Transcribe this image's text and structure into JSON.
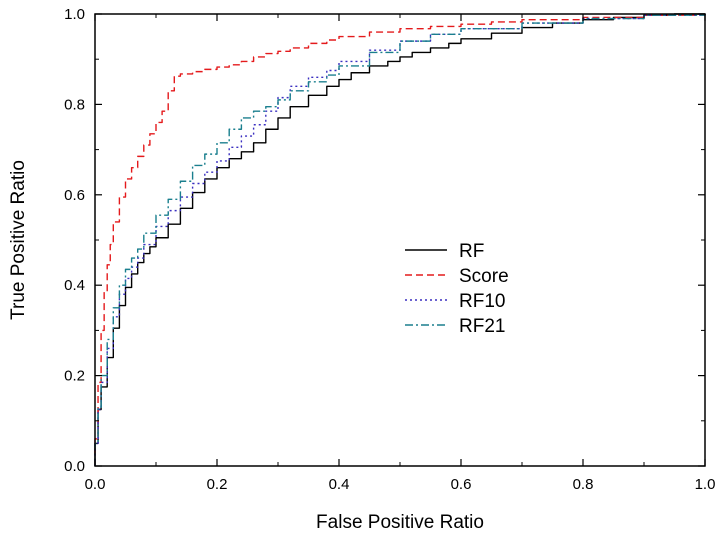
{
  "chart_data": {
    "type": "line",
    "title": "",
    "xlabel": "False Positive Ratio",
    "ylabel": "True Positive Ratio",
    "xlim": [
      0.0,
      1.0
    ],
    "ylim": [
      0.0,
      1.0
    ],
    "xticks": [
      "0.0",
      "0.2",
      "0.4",
      "0.6",
      "0.8",
      "1.0"
    ],
    "yticks": [
      "0.0",
      "0.2",
      "0.4",
      "0.6",
      "0.8",
      "1.0"
    ],
    "grid": false,
    "legend_position": "center-right",
    "series": [
      {
        "name": "RF",
        "color": "#000000",
        "dash": "solid",
        "x": [
          0.0,
          0.005,
          0.01,
          0.02,
          0.03,
          0.04,
          0.05,
          0.06,
          0.07,
          0.08,
          0.09,
          0.1,
          0.12,
          0.14,
          0.16,
          0.18,
          0.2,
          0.22,
          0.24,
          0.26,
          0.28,
          0.3,
          0.32,
          0.35,
          0.38,
          0.4,
          0.42,
          0.45,
          0.48,
          0.5,
          0.52,
          0.55,
          0.58,
          0.6,
          0.65,
          0.7,
          0.75,
          0.8,
          0.85,
          0.9,
          0.95,
          1.0
        ],
        "y": [
          0.0,
          0.1,
          0.15,
          0.2,
          0.28,
          0.33,
          0.38,
          0.41,
          0.44,
          0.46,
          0.48,
          0.49,
          0.52,
          0.55,
          0.59,
          0.62,
          0.65,
          0.67,
          0.69,
          0.7,
          0.73,
          0.76,
          0.78,
          0.81,
          0.83,
          0.85,
          0.86,
          0.88,
          0.89,
          0.9,
          0.91,
          0.92,
          0.93,
          0.94,
          0.95,
          0.965,
          0.975,
          0.985,
          0.99,
          0.995,
          1.0,
          1.0
        ]
      },
      {
        "name": "Score",
        "color": "#e41a1c",
        "dash": "dashed",
        "x": [
          0.0,
          0.005,
          0.01,
          0.015,
          0.02,
          0.025,
          0.03,
          0.04,
          0.05,
          0.06,
          0.07,
          0.08,
          0.09,
          0.1,
          0.11,
          0.12,
          0.13,
          0.14,
          0.16,
          0.18,
          0.2,
          0.22,
          0.24,
          0.26,
          0.28,
          0.3,
          0.32,
          0.35,
          0.38,
          0.4,
          0.45,
          0.5,
          0.55,
          0.6,
          0.65,
          0.7,
          0.8,
          0.9,
          1.0
        ],
        "y": [
          0.0,
          0.12,
          0.25,
          0.35,
          0.42,
          0.47,
          0.51,
          0.57,
          0.62,
          0.65,
          0.67,
          0.7,
          0.72,
          0.75,
          0.77,
          0.8,
          0.86,
          0.865,
          0.87,
          0.875,
          0.88,
          0.885,
          0.89,
          0.9,
          0.91,
          0.915,
          0.92,
          0.93,
          0.94,
          0.945,
          0.955,
          0.965,
          0.97,
          0.975,
          0.98,
          0.985,
          0.99,
          0.995,
          1.0
        ]
      },
      {
        "name": "RF10",
        "color": "#3a2fc0",
        "dash": "dotted",
        "x": [
          0.0,
          0.005,
          0.01,
          0.02,
          0.03,
          0.04,
          0.05,
          0.06,
          0.07,
          0.08,
          0.1,
          0.12,
          0.14,
          0.16,
          0.18,
          0.2,
          0.22,
          0.24,
          0.26,
          0.28,
          0.3,
          0.32,
          0.35,
          0.38,
          0.4,
          0.45,
          0.5,
          0.55,
          0.6,
          0.7,
          0.8,
          0.9,
          1.0
        ],
        "y": [
          0.0,
          0.1,
          0.15,
          0.22,
          0.3,
          0.36,
          0.4,
          0.43,
          0.45,
          0.47,
          0.51,
          0.55,
          0.58,
          0.61,
          0.64,
          0.66,
          0.69,
          0.72,
          0.74,
          0.77,
          0.8,
          0.83,
          0.85,
          0.87,
          0.88,
          0.91,
          0.93,
          0.95,
          0.96,
          0.975,
          0.985,
          0.995,
          1.0
        ]
      },
      {
        "name": "RF21",
        "color": "#1a7f8e",
        "dash": "dashdot",
        "x": [
          0.0,
          0.005,
          0.01,
          0.02,
          0.03,
          0.04,
          0.05,
          0.06,
          0.07,
          0.08,
          0.1,
          0.12,
          0.14,
          0.16,
          0.18,
          0.2,
          0.22,
          0.24,
          0.26,
          0.28,
          0.3,
          0.32,
          0.35,
          0.38,
          0.4,
          0.45,
          0.5,
          0.55,
          0.6,
          0.7,
          0.8,
          0.9,
          1.0
        ],
        "y": [
          0.0,
          0.1,
          0.16,
          0.24,
          0.32,
          0.38,
          0.42,
          0.45,
          0.47,
          0.49,
          0.54,
          0.57,
          0.61,
          0.65,
          0.68,
          0.7,
          0.73,
          0.76,
          0.78,
          0.79,
          0.8,
          0.82,
          0.84,
          0.86,
          0.87,
          0.9,
          0.93,
          0.95,
          0.96,
          0.975,
          0.985,
          0.995,
          1.0
        ]
      }
    ]
  }
}
